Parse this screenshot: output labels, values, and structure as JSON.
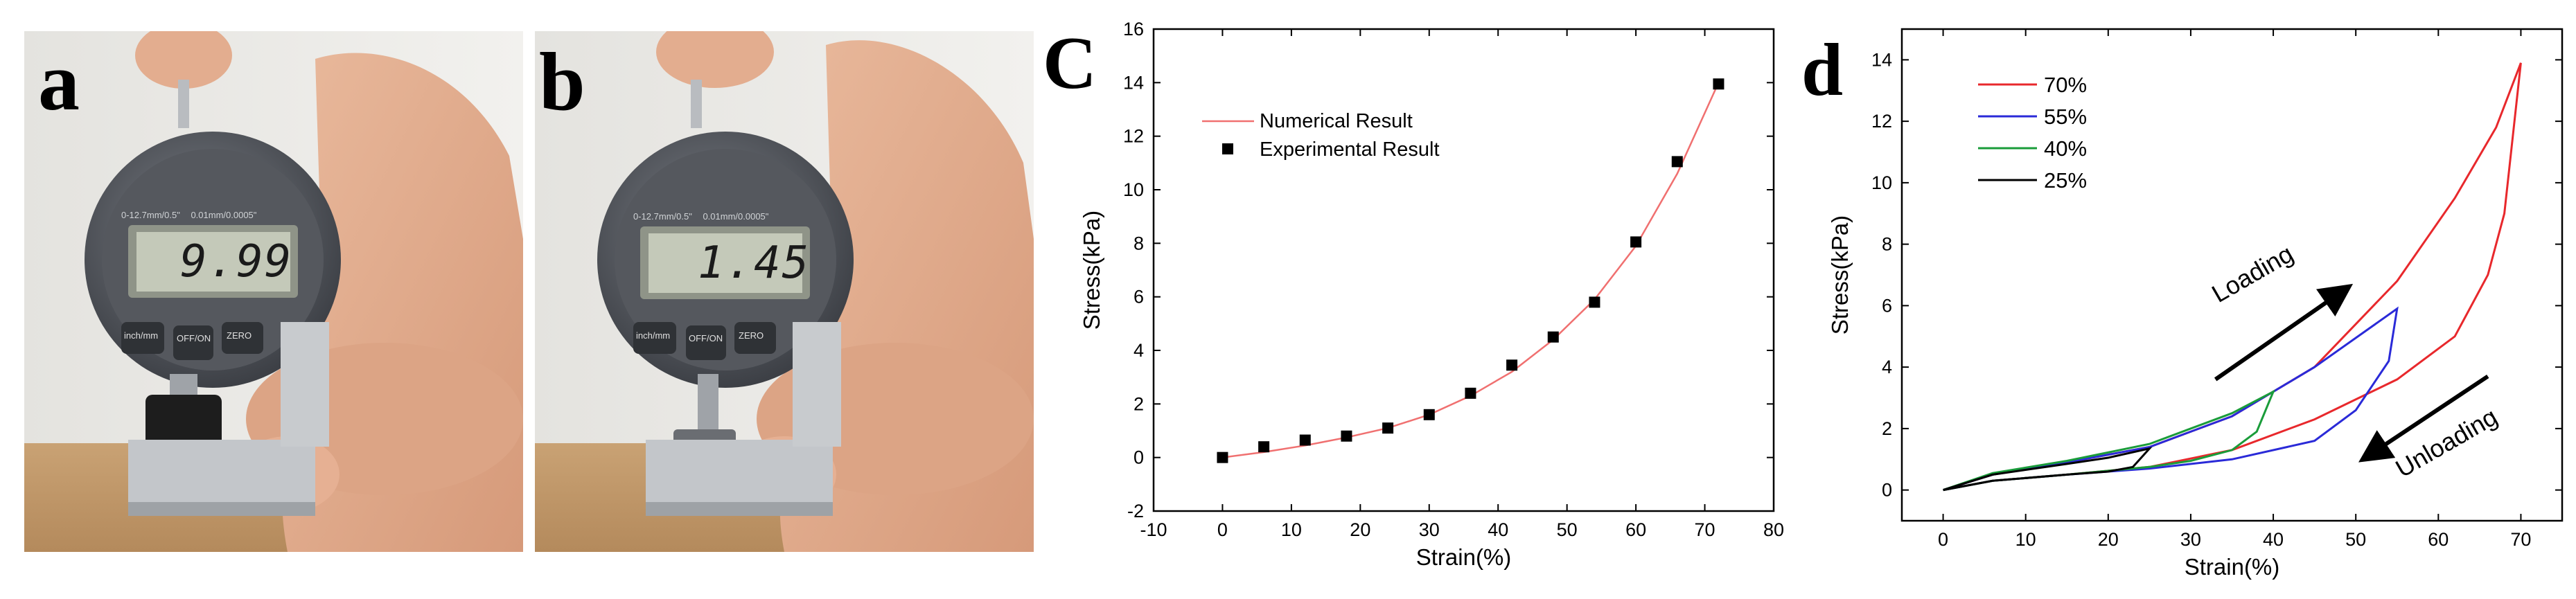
{
  "panels": {
    "a": {
      "letter": "a",
      "gauge": {
        "reading": "9.99",
        "spec_left": "0-12.7mm/0.5\"",
        "spec_right": "0.01mm/0.0005\"",
        "buttons": [
          "inch/mm",
          "OFF/ON",
          "ZERO"
        ]
      }
    },
    "b": {
      "letter": "b",
      "gauge": {
        "reading": "1.45",
        "spec_left": "0-12.7mm/0.5\"",
        "spec_right": "0.01mm/0.0005\"",
        "buttons": [
          "inch/mm",
          "OFF/ON",
          "ZERO"
        ]
      }
    },
    "c": {
      "letter": "C"
    },
    "d": {
      "letter": "d"
    }
  },
  "chart_data": [
    {
      "type": "scatter",
      "panel": "C",
      "xlabel": "Strain(%)",
      "ylabel": "Stress(kPa)",
      "xlim": [
        -10,
        80
      ],
      "ylim": [
        -2,
        16
      ],
      "xticks": [
        -10,
        0,
        10,
        20,
        30,
        40,
        50,
        60,
        70,
        80
      ],
      "yticks": [
        -2,
        0,
        2,
        4,
        6,
        8,
        10,
        12,
        14,
        16
      ],
      "legend_position": "top-left",
      "series": [
        {
          "name": "Numerical Result",
          "kind": "line",
          "color": "#f07070",
          "x": [
            0,
            6,
            12,
            18,
            24,
            30,
            36,
            42,
            48,
            54,
            60,
            66,
            72
          ],
          "y": [
            0,
            0.2,
            0.45,
            0.75,
            1.1,
            1.6,
            2.3,
            3.2,
            4.4,
            5.9,
            7.9,
            10.6,
            14.0
          ]
        },
        {
          "name": "Experimental Result",
          "kind": "scatter",
          "color": "#000000",
          "x": [
            0,
            6,
            12,
            18,
            24,
            30,
            36,
            42,
            48,
            54,
            60,
            66,
            72
          ],
          "y": [
            0.0,
            0.4,
            0.65,
            0.8,
            1.1,
            1.6,
            2.4,
            3.45,
            4.5,
            5.8,
            8.05,
            11.05,
            13.95
          ]
        }
      ]
    },
    {
      "type": "line",
      "panel": "d",
      "xlabel": "Strain(%)",
      "ylabel": "Stress(kPa)",
      "xlim": [
        -5,
        75
      ],
      "ylim": [
        -1,
        15
      ],
      "xticks": [
        0,
        10,
        20,
        30,
        40,
        50,
        60,
        70
      ],
      "yticks": [
        0,
        2,
        4,
        6,
        8,
        10,
        12,
        14
      ],
      "legend_position": "top-left",
      "annotations": [
        {
          "text": "Loading"
        },
        {
          "text": "Unloading"
        }
      ],
      "series": [
        {
          "name": "70%",
          "color": "#e8282c",
          "loading": {
            "x": [
              0,
              6,
              15,
              25,
              35,
              45,
              55,
              62,
              67,
              70
            ],
            "y": [
              0,
              0.5,
              0.9,
              1.4,
              2.4,
              4.0,
              6.8,
              9.5,
              11.8,
              13.9
            ]
          },
          "unloading": {
            "x": [
              70,
              68,
              66,
              62,
              55,
              45,
              35,
              25,
              15,
              6,
              0
            ],
            "y": [
              13.9,
              9.0,
              7.0,
              5.0,
              3.6,
              2.3,
              1.3,
              0.75,
              0.5,
              0.3,
              0
            ]
          }
        },
        {
          "name": "55%",
          "color": "#2a2ad8",
          "loading": {
            "x": [
              0,
              6,
              15,
              25,
              35,
              45,
              55
            ],
            "y": [
              0,
              0.5,
              0.9,
              1.4,
              2.4,
              4.0,
              5.9
            ]
          },
          "unloading": {
            "x": [
              55,
              54,
              50,
              45,
              35,
              25,
              15,
              6,
              0
            ],
            "y": [
              5.9,
              4.2,
              2.6,
              1.6,
              1.0,
              0.7,
              0.5,
              0.3,
              0
            ]
          }
        },
        {
          "name": "40%",
          "color": "#1a9c3a",
          "loading": {
            "x": [
              0,
              6,
              15,
              25,
              35,
              40
            ],
            "y": [
              0,
              0.55,
              0.95,
              1.5,
              2.5,
              3.2
            ]
          },
          "unloading": {
            "x": [
              40,
              38,
              35,
              30,
              25,
              15,
              6,
              0
            ],
            "y": [
              3.2,
              1.9,
              1.3,
              0.95,
              0.75,
              0.5,
              0.3,
              0
            ]
          }
        },
        {
          "name": "25%",
          "color": "#000000",
          "loading": {
            "x": [
              0,
              6,
              15,
              20,
              25
            ],
            "y": [
              0,
              0.5,
              0.85,
              1.05,
              1.35
            ]
          },
          "unloading": {
            "x": [
              25,
              23,
              20,
              15,
              6,
              0
            ],
            "y": [
              1.35,
              0.75,
              0.6,
              0.5,
              0.3,
              0
            ]
          }
        }
      ]
    }
  ]
}
